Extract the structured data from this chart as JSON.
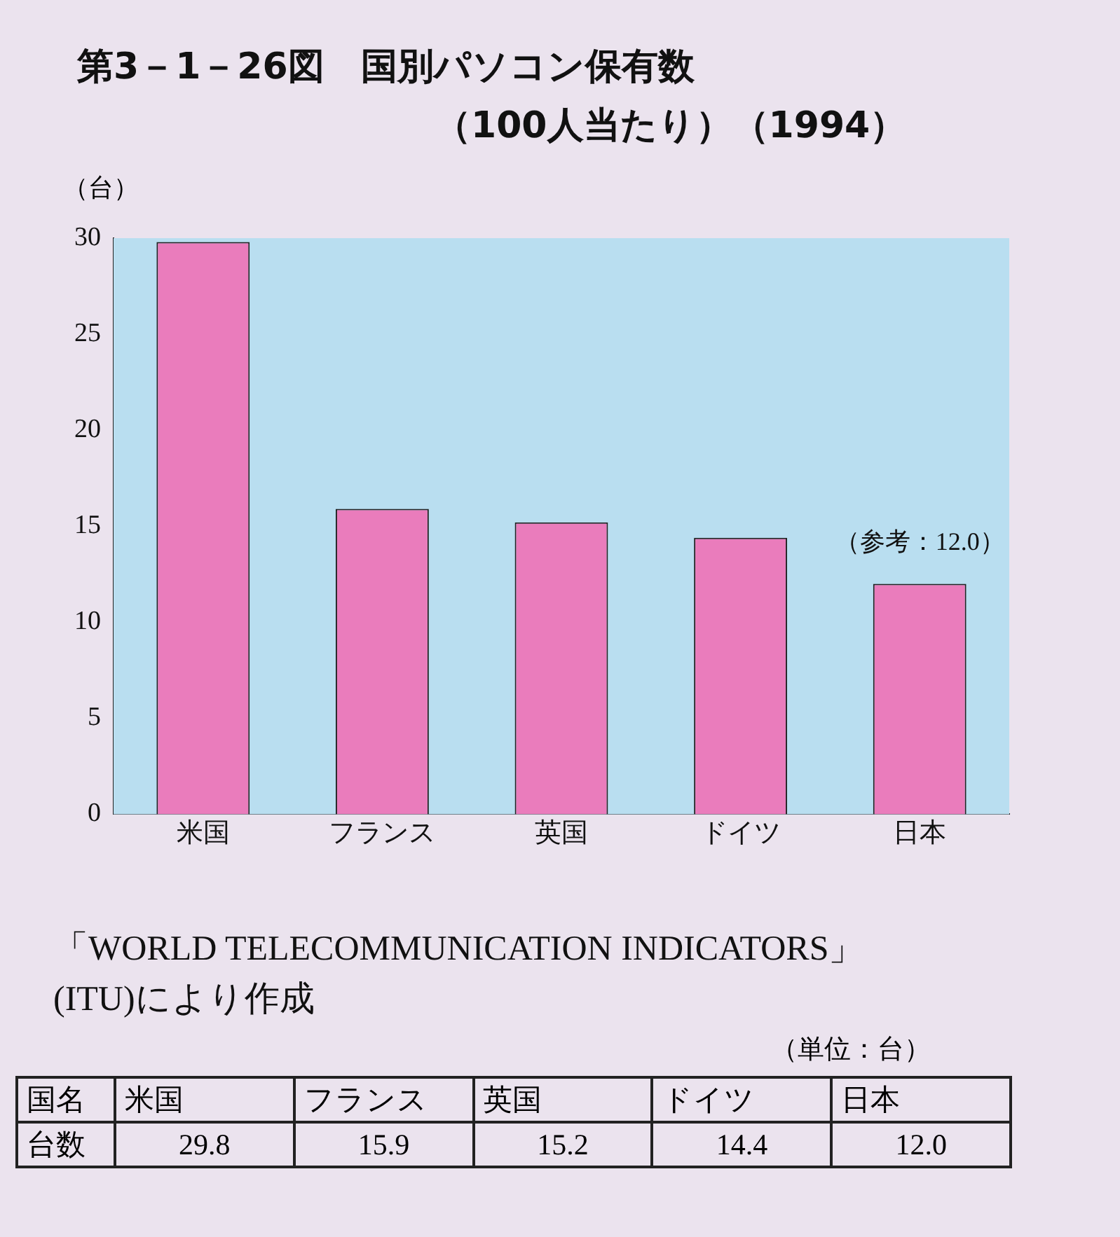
{
  "chart_data": {
    "type": "bar",
    "title": "第3－1－26図　国別パソコン保有数",
    "subtitle": "（100人当たり）（1994）",
    "ylabel": "（台）",
    "categories": [
      "米国",
      "フランス",
      "英国",
      "ドイツ",
      "日本"
    ],
    "values": [
      29.8,
      15.9,
      15.2,
      14.4,
      12.0
    ],
    "value_labels": [
      "29.8",
      "15.9",
      "15.2",
      "14.4",
      "12.0"
    ],
    "color": "#ea7cbc",
    "ylim": [
      0,
      30
    ],
    "yticks": [
      0,
      5,
      10,
      15,
      20,
      25,
      30
    ],
    "grid": false,
    "legend": false,
    "annotations": [
      {
        "text": "（参考：12.0）",
        "x": "日本",
        "y": 12.0
      },
      "「WORLD TELECOMMUNICATION INDICATORS」(ITU)により作成",
      "（単位：台）",
      "国名",
      "台数"
    ]
  }
}
